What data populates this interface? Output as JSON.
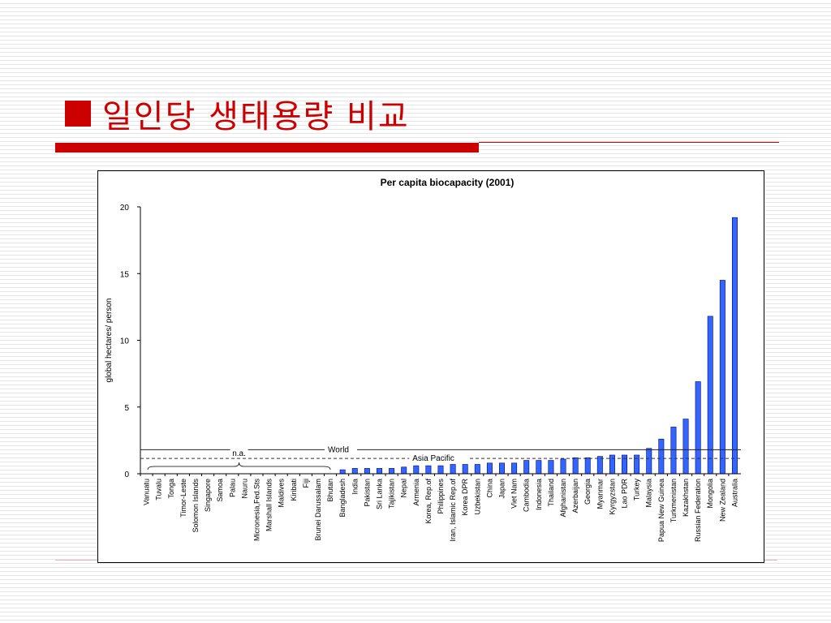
{
  "slide": {
    "title": "일인당 생태용량 비교",
    "title_marker": "square-bullet-icon"
  },
  "colors": {
    "accent": "#cc0000",
    "bar": "#3366ff",
    "bar_edge": "#000080",
    "text": "#000000"
  },
  "chart_data": {
    "type": "bar",
    "title": "Per capita biocapacity (2001)",
    "ylabel": "global hectares/ person",
    "xlabel": "",
    "ylim": [
      0,
      20
    ],
    "yticks": [
      0,
      5,
      10,
      15,
      20
    ],
    "grid": false,
    "categories": [
      "Vanuatu",
      "Tuvalu",
      "Tonga",
      "Timor-Leste",
      "Solomon Islands",
      "Singapore",
      "Samoa",
      "Palau",
      "Nauru",
      "Micronesia,Fed.Sts",
      "Marshall Islands",
      "Maldives",
      "Kiribati",
      "Fiji",
      "Brunei Darussalam",
      "Bhutan",
      "Bangladesh",
      "India",
      "Pakistan",
      "Sri Lanka",
      "Tajikistan",
      "Nepal",
      "Armenia",
      "Korea, Rep.of",
      "Philippines",
      "Iran, Islamic Rep.of",
      "Korea DPR",
      "Uzbekistan",
      "China",
      "Japan",
      "Viet Nam",
      "Cambodia",
      "Indonesia",
      "Thailand",
      "Afghanistan",
      "Azerbaijan",
      "Georgia",
      "Myanmar",
      "Kyrgyzstan",
      "Lao PDR",
      "Turkey",
      "Malaysia",
      "Papua New Guinea",
      "Turkmenistan",
      "Kazakhstan",
      "Russian Federation",
      "Mongolia",
      "New Zealand",
      "Australia"
    ],
    "values": [
      null,
      null,
      null,
      null,
      null,
      null,
      null,
      null,
      null,
      null,
      null,
      null,
      null,
      null,
      null,
      null,
      0.3,
      0.4,
      0.4,
      0.4,
      0.4,
      0.5,
      0.6,
      0.6,
      0.6,
      0.7,
      0.7,
      0.7,
      0.8,
      0.8,
      0.8,
      1.0,
      1.0,
      1.0,
      1.1,
      1.2,
      1.2,
      1.3,
      1.4,
      1.4,
      1.4,
      1.9,
      2.6,
      3.5,
      4.1,
      6.9,
      11.8,
      14.5,
      19.2
    ],
    "reference_lines": [
      {
        "label": "World",
        "value": 1.8,
        "style": "solid"
      },
      {
        "label": "Asia Pacific",
        "value": 1.15,
        "style": "dashed"
      }
    ],
    "annotations": [
      {
        "text": "n.a.",
        "target": "Vanuatu – Bhutan"
      }
    ]
  }
}
